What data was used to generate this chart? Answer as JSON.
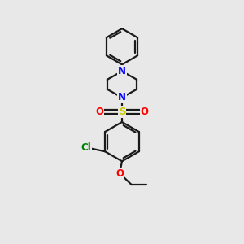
{
  "background_color": "#e8e8e8",
  "bond_color": "#1a1a1a",
  "N_color": "#0000ff",
  "O_color": "#ff0000",
  "S_color": "#cccc00",
  "Cl_color": "#008000",
  "line_width": 1.6,
  "figsize": [
    3.0,
    3.0
  ],
  "dpi": 100,
  "xlim": [
    0,
    10
  ],
  "ylim": [
    0,
    10
  ]
}
